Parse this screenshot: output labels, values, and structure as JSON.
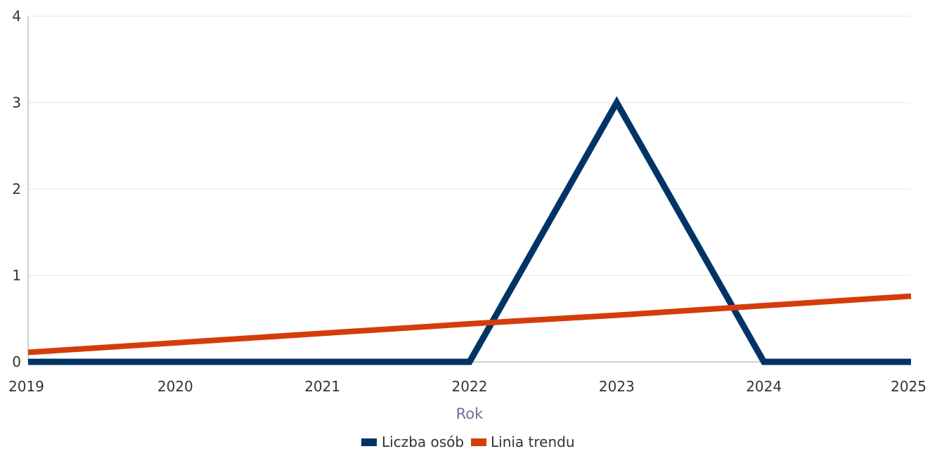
{
  "chart_data": {
    "type": "line",
    "title": "",
    "xlabel": "Rok",
    "ylabel": "",
    "x": [
      "2019",
      "2020",
      "2021",
      "2022",
      "2023",
      "2024",
      "2025"
    ],
    "ylim": [
      0,
      4
    ],
    "yticks": [
      "0",
      "1",
      "2",
      "3",
      "4"
    ],
    "grid": true,
    "legend_position": "bottom-center",
    "series": [
      {
        "name": "Liczba osób",
        "color": "#003366",
        "values": [
          0,
          0,
          0,
          0,
          3,
          0,
          0
        ]
      },
      {
        "name": "Linia trendu",
        "color": "#d43d0b",
        "values": [
          0.11,
          0.22,
          0.33,
          0.44,
          0.54,
          0.65,
          0.76
        ]
      }
    ]
  }
}
